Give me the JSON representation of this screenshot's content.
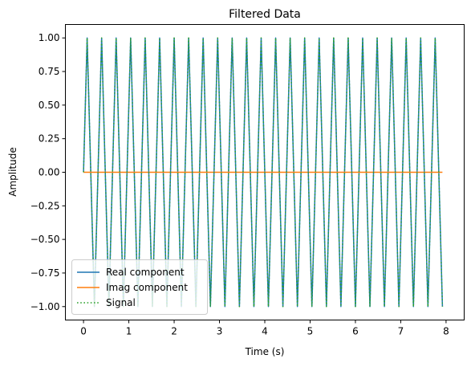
{
  "chart_data": {
    "type": "line",
    "title": "Filtered Data",
    "xlabel": "Time (s)",
    "ylabel": "Amplitude",
    "xlim": [
      -0.4,
      8.4
    ],
    "ylim": [
      -1.1,
      1.1
    ],
    "x_ticks": [
      0,
      1,
      2,
      3,
      4,
      5,
      6,
      7,
      8
    ],
    "x_tick_labels": [
      "0",
      "1",
      "2",
      "3",
      "4",
      "5",
      "6",
      "7",
      "8"
    ],
    "y_ticks": [
      -1.0,
      -0.75,
      -0.5,
      -0.25,
      0.0,
      0.25,
      0.5,
      0.75,
      1.0
    ],
    "y_tick_labels": [
      "−1.00",
      "−0.75",
      "−0.50",
      "−0.25",
      "0.00",
      "0.25",
      "0.50",
      "0.75",
      "1.00"
    ],
    "grid": false,
    "legend_position": "lower-left",
    "x_start": 0,
    "x_end": 7.92,
    "x_step": 0.08,
    "signal_frequency_hz": 3.125,
    "series": [
      {
        "name": "Real component",
        "color": "#1f77b4",
        "style": "solid",
        "kind": "cosine-wave"
      },
      {
        "name": "Imag component",
        "color": "#ff7f0e",
        "style": "solid",
        "kind": "zero"
      },
      {
        "name": "Signal",
        "color": "#2ca02c",
        "style": "dotted",
        "kind": "cosine-wave"
      }
    ]
  }
}
